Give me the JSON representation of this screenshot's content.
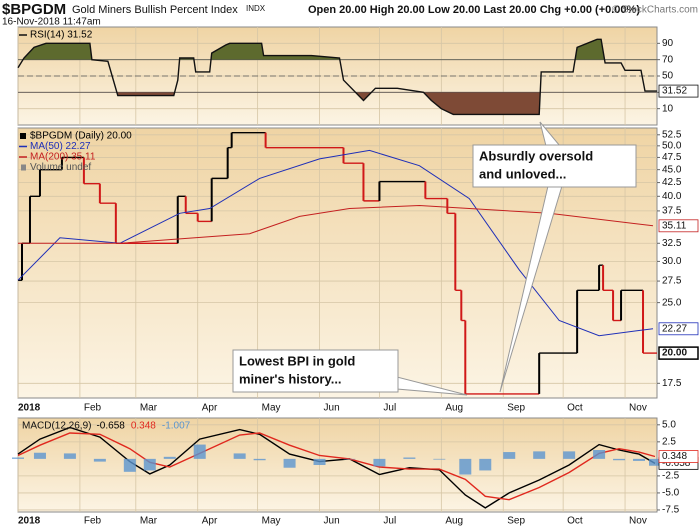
{
  "header": {
    "symbol": "$BPGDM",
    "name": "Gold Miners Bullish Percent Index",
    "exchange": "INDX",
    "date": "16-Nov-2018 11:47am",
    "quote": "Open 20.00  High 20.00  Low 20.00  Last 20.00  Chg +0.00 (+0.00%)",
    "credit": "© StockCharts.com"
  },
  "chart_data": [
    {
      "type": "line",
      "xlim": [
        0,
        320
      ],
      "ylim": [
        -10,
        110
      ],
      "yticks": [
        10,
        30,
        50,
        70,
        90
      ],
      "levels": [
        30,
        70
      ],
      "dashed_levels": [
        50
      ],
      "fill_above": "#5d6a2e",
      "fill_below": "#7e4a36",
      "series": [
        {
          "name": "RSI(14) 31.52",
          "color": "#111111",
          "last_label": "31.52",
          "x": [
            0,
            3,
            8,
            14,
            36,
            37,
            45,
            50,
            78,
            80,
            81,
            88,
            89,
            96,
            97,
            104,
            106,
            122,
            123,
            147,
            161,
            163,
            173,
            179,
            190,
            203,
            207,
            212,
            218,
            261,
            262,
            278,
            280,
            290,
            292,
            294,
            302,
            304,
            312,
            314,
            320
          ],
          "values": [
            60,
            72,
            85,
            90,
            90,
            70,
            68,
            26,
            26,
            45,
            72,
            72,
            55,
            55,
            78,
            88,
            90,
            90,
            75,
            75,
            72,
            45,
            20,
            35,
            35,
            30,
            20,
            10,
            3,
            3,
            55,
            55,
            85,
            95,
            95,
            66,
            66,
            57,
            57,
            31.52,
            31.52
          ]
        }
      ]
    },
    {
      "type": "line",
      "log_scale": true,
      "xlim": [
        0,
        320
      ],
      "ylim": [
        16.4,
        54.1
      ],
      "xticks": [
        {
          "value": 0,
          "label": "2018"
        },
        {
          "value": 31,
          "label": "Feb"
        },
        {
          "value": 59,
          "label": "Mar"
        },
        {
          "value": 90,
          "label": "Apr"
        },
        {
          "value": 120,
          "label": "May"
        },
        {
          "value": 151,
          "label": "Jun"
        },
        {
          "value": 181,
          "label": "Jul"
        },
        {
          "value": 212,
          "label": "Aug"
        },
        {
          "value": 243,
          "label": "Sep"
        },
        {
          "value": 273,
          "label": "Oct"
        },
        {
          "value": 304,
          "label": "Nov"
        }
      ],
      "yticks": [
        52.5,
        {
          "value": 50,
          "label": "50.0"
        },
        47.5,
        {
          "value": 45,
          "label": "45.0"
        },
        42.5,
        {
          "value": 40,
          "label": "40.0"
        },
        37.5,
        32.5,
        {
          "value": 30,
          "label": "30.0"
        },
        27.5,
        {
          "value": 25,
          "label": "25.0"
        },
        17.5
      ],
      "volume_label": "Volume undef",
      "series": [
        {
          "name": "$BPGDM (Daily) 20.00",
          "style": "step",
          "color": "#000000",
          "down_color": "#d01818",
          "last_label": "20.00",
          "x": [
            0,
            2,
            6,
            11,
            22,
            33,
            41,
            49,
            80,
            84,
            90,
            97,
            105,
            107,
            124,
            163,
            173,
            181,
            204,
            215,
            219,
            222,
            224,
            261,
            280,
            291,
            293,
            298,
            302,
            313
          ],
          "values": [
            27.6,
            32.5,
            40,
            45,
            47.5,
            42.3,
            38.8,
            32.5,
            40,
            37.1,
            35.8,
            43.3,
            49.6,
            53,
            49.6,
            46.3,
            39.2,
            42.7,
            39.6,
            37.1,
            26.4,
            23.1,
            16.7,
            20,
            26.4,
            29.5,
            26.4,
            23.1,
            26.4,
            20
          ]
        },
        {
          "name": "MA(50) 22.27",
          "color": "#1f2fb8",
          "last_label": "22.27",
          "x": [
            0,
            21,
            51,
            81,
            96,
            121,
            151,
            176,
            201,
            226,
            251,
            271,
            291,
            311,
            318
          ],
          "values": [
            27.6,
            33.3,
            32.5,
            37.1,
            37.9,
            43.3,
            47.2,
            49.0,
            45.8,
            39.6,
            28.9,
            23.1,
            21.6,
            22.1,
            22.27
          ]
        },
        {
          "name": "MA(200) 35.11",
          "color": "#c42020",
          "last_label": "35.11",
          "x": [
            0,
            51,
            116,
            141,
            166,
            201,
            226,
            266,
            318
          ],
          "values": [
            32.5,
            32.5,
            33.9,
            36.6,
            37.9,
            38.4,
            37.9,
            37.1,
            35.11
          ]
        }
      ],
      "annotations": [
        {
          "lines": [
            "Absurdly oversold",
            "and unloved..."
          ]
        },
        {
          "lines": [
            "Lowest BPI in gold",
            "miner's history..."
          ]
        }
      ]
    },
    {
      "type": "line",
      "xlim": [
        0,
        320
      ],
      "ylim": [
        -7.8,
        6.0
      ],
      "legend_title": "MACD(12,26,9)",
      "xticks": [
        {
          "value": 0,
          "label": "2018"
        },
        {
          "value": 31,
          "label": "Feb"
        },
        {
          "value": 59,
          "label": "Mar"
        },
        {
          "value": 90,
          "label": "Apr"
        },
        {
          "value": 120,
          "label": "May"
        },
        {
          "value": 151,
          "label": "Jun"
        },
        {
          "value": 181,
          "label": "Jul"
        },
        {
          "value": 212,
          "label": "Aug"
        },
        {
          "value": 243,
          "label": "Sep"
        },
        {
          "value": 273,
          "label": "Oct"
        },
        {
          "value": 304,
          "label": "Nov"
        }
      ],
      "yticks": [
        {
          "value": 5,
          "label": "5.0"
        },
        2.5,
        -2.5,
        {
          "value": -5,
          "label": "-5.0"
        },
        -7.5
      ],
      "series": [
        {
          "name": "-0.658",
          "color": "#000000",
          "last_label": "-0.658",
          "x": [
            0,
            11,
            26,
            41,
            56,
            66,
            76,
            91,
            111,
            121,
            136,
            151,
            166,
            181,
            196,
            211,
            224,
            234,
            246,
            261,
            276,
            291,
            301,
            311,
            319
          ],
          "values": [
            0.7,
            2.9,
            4.6,
            3.2,
            -0.4,
            -2.2,
            -0.9,
            2.9,
            4.3,
            3.6,
            0.7,
            -0.4,
            0,
            -2.3,
            -1.3,
            -1.6,
            -5.3,
            -7.2,
            -5.0,
            -3.1,
            -0.9,
            2.1,
            1.3,
            0.7,
            -0.658
          ]
        },
        {
          "name": "0.348",
          "color": "#e0281e",
          "last_label": "0.348",
          "x": [
            0,
            11,
            26,
            41,
            56,
            66,
            76,
            91,
            111,
            121,
            136,
            151,
            166,
            181,
            196,
            211,
            224,
            234,
            246,
            261,
            276,
            291,
            301,
            311,
            319
          ],
          "values": [
            0.5,
            2.0,
            3.8,
            3.6,
            1.5,
            -0.5,
            -1.2,
            0.8,
            3.5,
            3.8,
            2.0,
            0.5,
            0,
            -1.2,
            -1.5,
            -1.5,
            -3.0,
            -5.5,
            -6.0,
            -4.2,
            -2.0,
            0.8,
            1.5,
            1.0,
            0.348
          ]
        },
        {
          "name": "-1.007",
          "style": "bar",
          "color": "#5b95cf",
          "x": [
            0,
            11,
            26,
            41,
            56,
            66,
            76,
            91,
            111,
            121,
            136,
            151,
            166,
            181,
            196,
            211,
            224,
            234,
            246,
            261,
            276,
            291,
            301,
            311,
            319
          ],
          "values": [
            0.2,
            0.9,
            0.8,
            -0.4,
            -1.9,
            -1.7,
            0.3,
            2.1,
            0.8,
            -0.2,
            -1.3,
            -0.9,
            0,
            -1.1,
            0.2,
            -0.1,
            -2.3,
            -1.7,
            1.0,
            1.1,
            1.1,
            1.3,
            -0.2,
            -0.3,
            -1.007
          ]
        }
      ]
    }
  ]
}
